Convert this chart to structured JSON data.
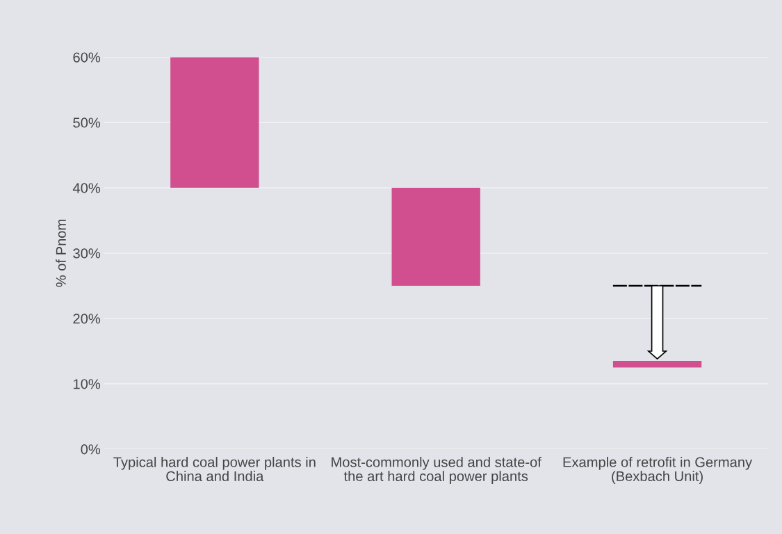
{
  "chart_data": {
    "type": "bar",
    "ylabel": "% of Pnom",
    "categories": [
      "Typical hard coal power plants in China and India",
      "Most-commonly used and state-of the art hard coal power plants",
      "Example of retrofit in Germany (Bexbach Unit)"
    ],
    "values": [
      20,
      15,
      1
    ],
    "base": [
      40,
      25,
      12.5
    ],
    "color": "#d24f8f",
    "ylim": [
      0,
      60
    ],
    "yticks": [
      {
        "value": 0,
        "label": "0%"
      },
      {
        "value": 10,
        "label": "10%"
      },
      {
        "value": 20,
        "label": "20%"
      },
      {
        "value": 30,
        "label": "30%"
      },
      {
        "value": 40,
        "label": "40%"
      },
      {
        "value": 50,
        "label": "50%"
      },
      {
        "value": 60,
        "label": "60%"
      }
    ],
    "grid": "y"
  }
}
